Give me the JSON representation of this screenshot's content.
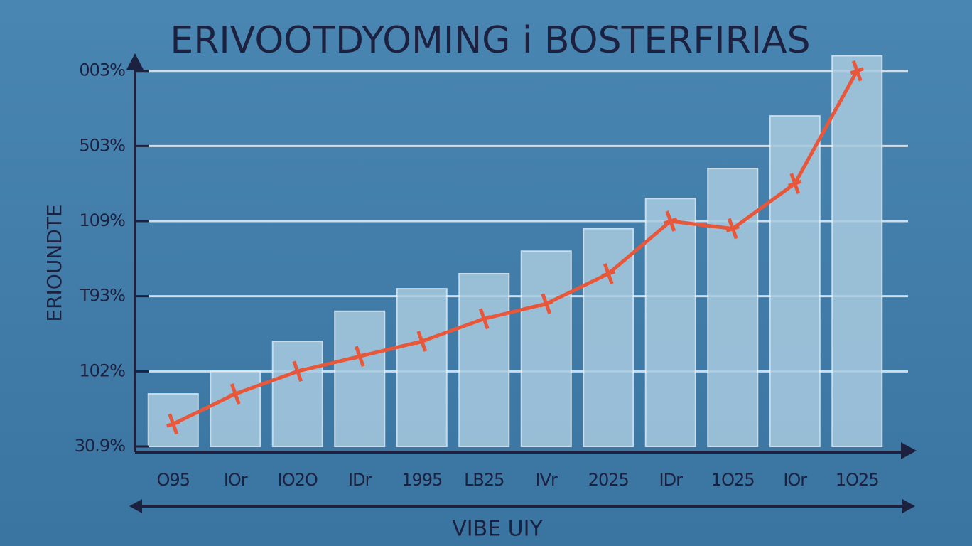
{
  "chart_data": {
    "type": "bar",
    "title": "ERIVOOTDYOMING i BOSTERFIRIAS",
    "y_label": "ERIOUNDTE",
    "x_label": "VIBE UIY",
    "categories": [
      "O95",
      "IOr",
      "IO2O",
      "IDr",
      "1995",
      "LB25",
      "IVr",
      "2025",
      "IDr",
      "1O25",
      "IOr",
      "1O25"
    ],
    "series": [
      {
        "type": "bar",
        "color": "#a9cbe0",
        "values": [
          0.7,
          1.0,
          1.4,
          1.8,
          2.1,
          2.3,
          2.6,
          2.9,
          3.3,
          3.7,
          4.4,
          5.2
        ]
      },
      {
        "type": "line",
        "color": "#e9573a",
        "values": [
          0.3,
          0.7,
          1.0,
          1.2,
          1.4,
          1.7,
          1.9,
          2.3,
          3.0,
          2.9,
          3.5,
          5.0
        ]
      }
    ],
    "ylim": [
      0,
      5.3
    ],
    "yticks": [
      {
        "value": 0,
        "label": "30.9%"
      },
      {
        "value": 1,
        "label": "102%"
      },
      {
        "value": 2,
        "label": "T93%"
      },
      {
        "value": 3,
        "label": "109%"
      },
      {
        "value": 4,
        "label": "503%"
      },
      {
        "value": 5,
        "label": "003%"
      }
    ],
    "grid": true
  }
}
